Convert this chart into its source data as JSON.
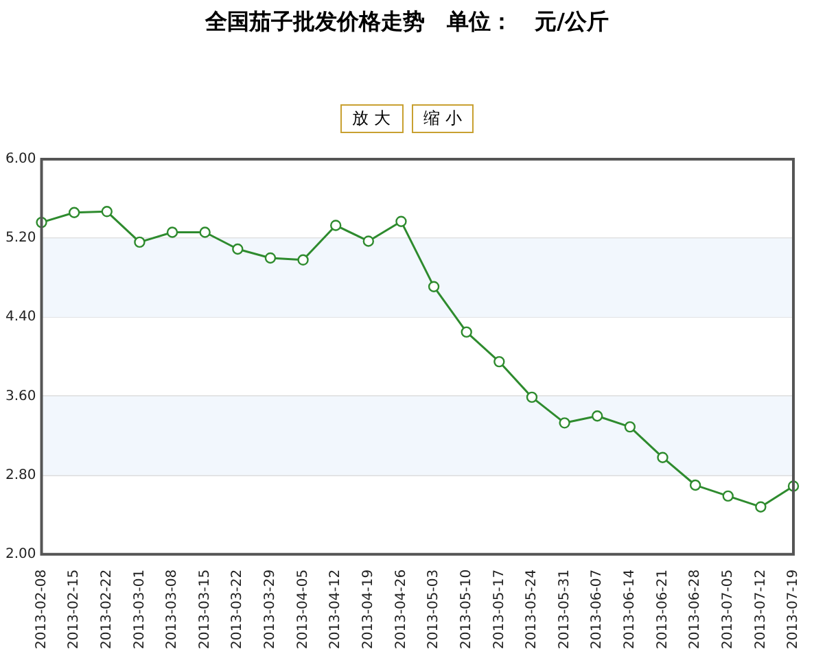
{
  "chart_data": {
    "type": "line",
    "title": "全国茄子批发价格走势　单位：　元/公斤",
    "annotations": [
      "放 大",
      "缩 小"
    ],
    "categories": [
      "2013-02-08",
      "2013-02-15",
      "2013-02-22",
      "2013-03-01",
      "2013-03-08",
      "2013-03-15",
      "2013-03-22",
      "2013-03-29",
      "2013-04-05",
      "2013-04-12",
      "2013-04-19",
      "2013-04-26",
      "2013-05-03",
      "2013-05-10",
      "2013-05-17",
      "2013-05-24",
      "2013-05-31",
      "2013-06-07",
      "2013-06-14",
      "2013-06-21",
      "2013-06-28",
      "2013-07-05",
      "2013-07-12",
      "2013-07-19"
    ],
    "series": [
      {
        "color": "#2e8b2e",
        "values": [
          5.36,
          5.46,
          5.47,
          5.16,
          5.26,
          5.26,
          5.09,
          5.0,
          4.98,
          5.33,
          5.17,
          5.37,
          4.71,
          4.25,
          3.95,
          3.59,
          3.33,
          3.4,
          3.29,
          2.98,
          2.7,
          2.59,
          2.48,
          2.69
        ]
      }
    ],
    "ylim": [
      2,
      6
    ],
    "yticks": [
      {
        "value": 2,
        "label": "2.00"
      },
      {
        "value": 2.8,
        "label": "2.80"
      },
      {
        "value": 3.6,
        "label": "3.60"
      },
      {
        "value": 4.4,
        "label": "4.40"
      },
      {
        "value": 5.2,
        "label": "5.20"
      },
      {
        "value": 6,
        "label": "6.00"
      }
    ],
    "bands": [
      {
        "axis": "y",
        "from": 2.8,
        "to": 3.6,
        "color": "#f2f7fd"
      },
      {
        "axis": "y",
        "from": 4.4,
        "to": 5.2,
        "color": "#f2f7fd"
      }
    ],
    "grid": "y",
    "marker": "circle",
    "line_style": "solid",
    "legend": false
  }
}
